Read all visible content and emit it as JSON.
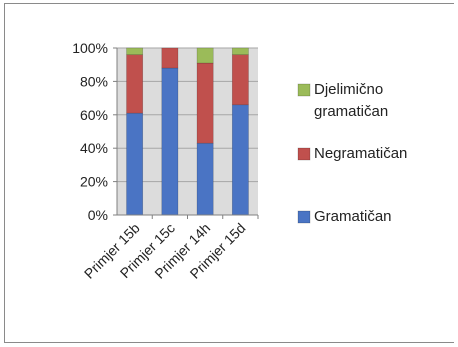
{
  "chart_data": {
    "type": "bar",
    "stacked": true,
    "percent": true,
    "categories": [
      "Primjer 15b",
      "Primjer 15c",
      "Primjer 14h",
      "Primjer 15d"
    ],
    "series": [
      {
        "name": "Gramatičan",
        "values": [
          61,
          88,
          43,
          66
        ],
        "color": "#4a74c4"
      },
      {
        "name": "Negramatičan",
        "values": [
          35,
          12,
          48,
          30
        ],
        "color": "#c0504d"
      },
      {
        "name": "Djelimično gramatičan",
        "values": [
          4,
          0,
          9,
          4
        ],
        "color": "#9bbb59"
      }
    ],
    "yticks": [
      "0%",
      "20%",
      "40%",
      "60%",
      "80%",
      "100%"
    ],
    "ylim": [
      0,
      100
    ],
    "grid": true,
    "plot_background": "#dcdcdc",
    "legend": {
      "placement": "right",
      "entries": [
        {
          "lines": [
            "Djelimično",
            "gramatičan"
          ],
          "color": "#9bbb59"
        },
        {
          "lines": [
            "Negramatičan"
          ],
          "color": "#c0504d"
        },
        {
          "lines": [
            "Gramatičan"
          ],
          "color": "#4a74c4"
        }
      ]
    }
  }
}
